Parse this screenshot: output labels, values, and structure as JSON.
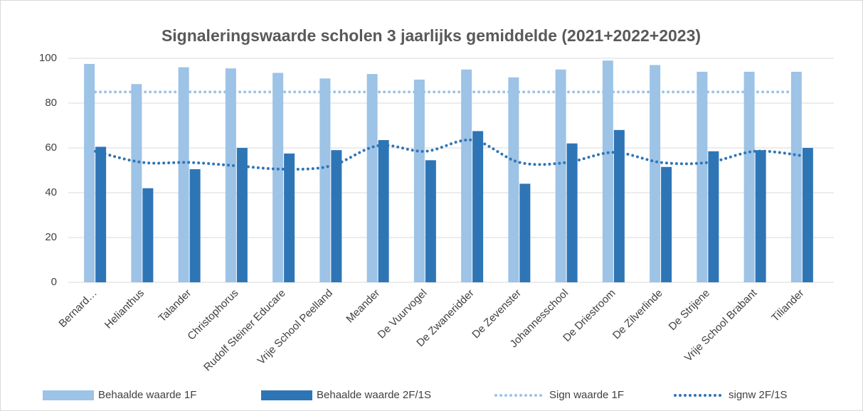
{
  "chart_data": {
    "type": "bar",
    "title": "Signaleringswaarde scholen 3 jaarlijks gemiddelde (2021+2022+2023)",
    "categories": [
      "Bernard…",
      "Helianthus",
      "Talander",
      "Christophorus",
      "Rudolf Steiner Educare",
      "Vrije School Peelland",
      "Meander",
      "De Vuurvogel",
      "De Zwaneridder",
      "De Zevenster",
      "Johannesschool",
      "De Driestroom",
      "De Zilverlinde",
      "De Strijene",
      "Vrije School Brabant",
      "Tiliander"
    ],
    "series": [
      {
        "name": "Behaalde waarde 1F",
        "type": "bar",
        "color": "#9dc3e6",
        "values": [
          97.5,
          88.5,
          96,
          95.5,
          93.5,
          91,
          93,
          90.5,
          95,
          91.5,
          95,
          99,
          97,
          94,
          94,
          94
        ]
      },
      {
        "name": "Behaalde waarde 2F/1S",
        "type": "bar",
        "color": "#2e75b6",
        "values": [
          60.5,
          42,
          50.5,
          60,
          57.5,
          59,
          63.5,
          54.5,
          67.5,
          44,
          62,
          68,
          51.5,
          58.5,
          59,
          60
        ]
      },
      {
        "name": "Sign waarde 1F",
        "type": "line",
        "color": "#9dc3e6",
        "values": [
          85,
          85,
          85,
          85,
          85,
          85,
          85,
          85,
          85,
          85,
          85,
          85,
          85,
          85,
          85,
          85
        ]
      },
      {
        "name": "signw 2F/1S",
        "type": "line",
        "color": "#2e75b6",
        "values": [
          58.5,
          53.5,
          53.5,
          52,
          50.5,
          52,
          61,
          58.5,
          63.5,
          53.5,
          53.5,
          58,
          53.5,
          53.5,
          58.5,
          56.5
        ]
      }
    ],
    "ylim": [
      0,
      100
    ],
    "yticks": [
      0,
      20,
      40,
      60,
      80,
      100
    ],
    "grid": true,
    "legend": "bottom"
  }
}
